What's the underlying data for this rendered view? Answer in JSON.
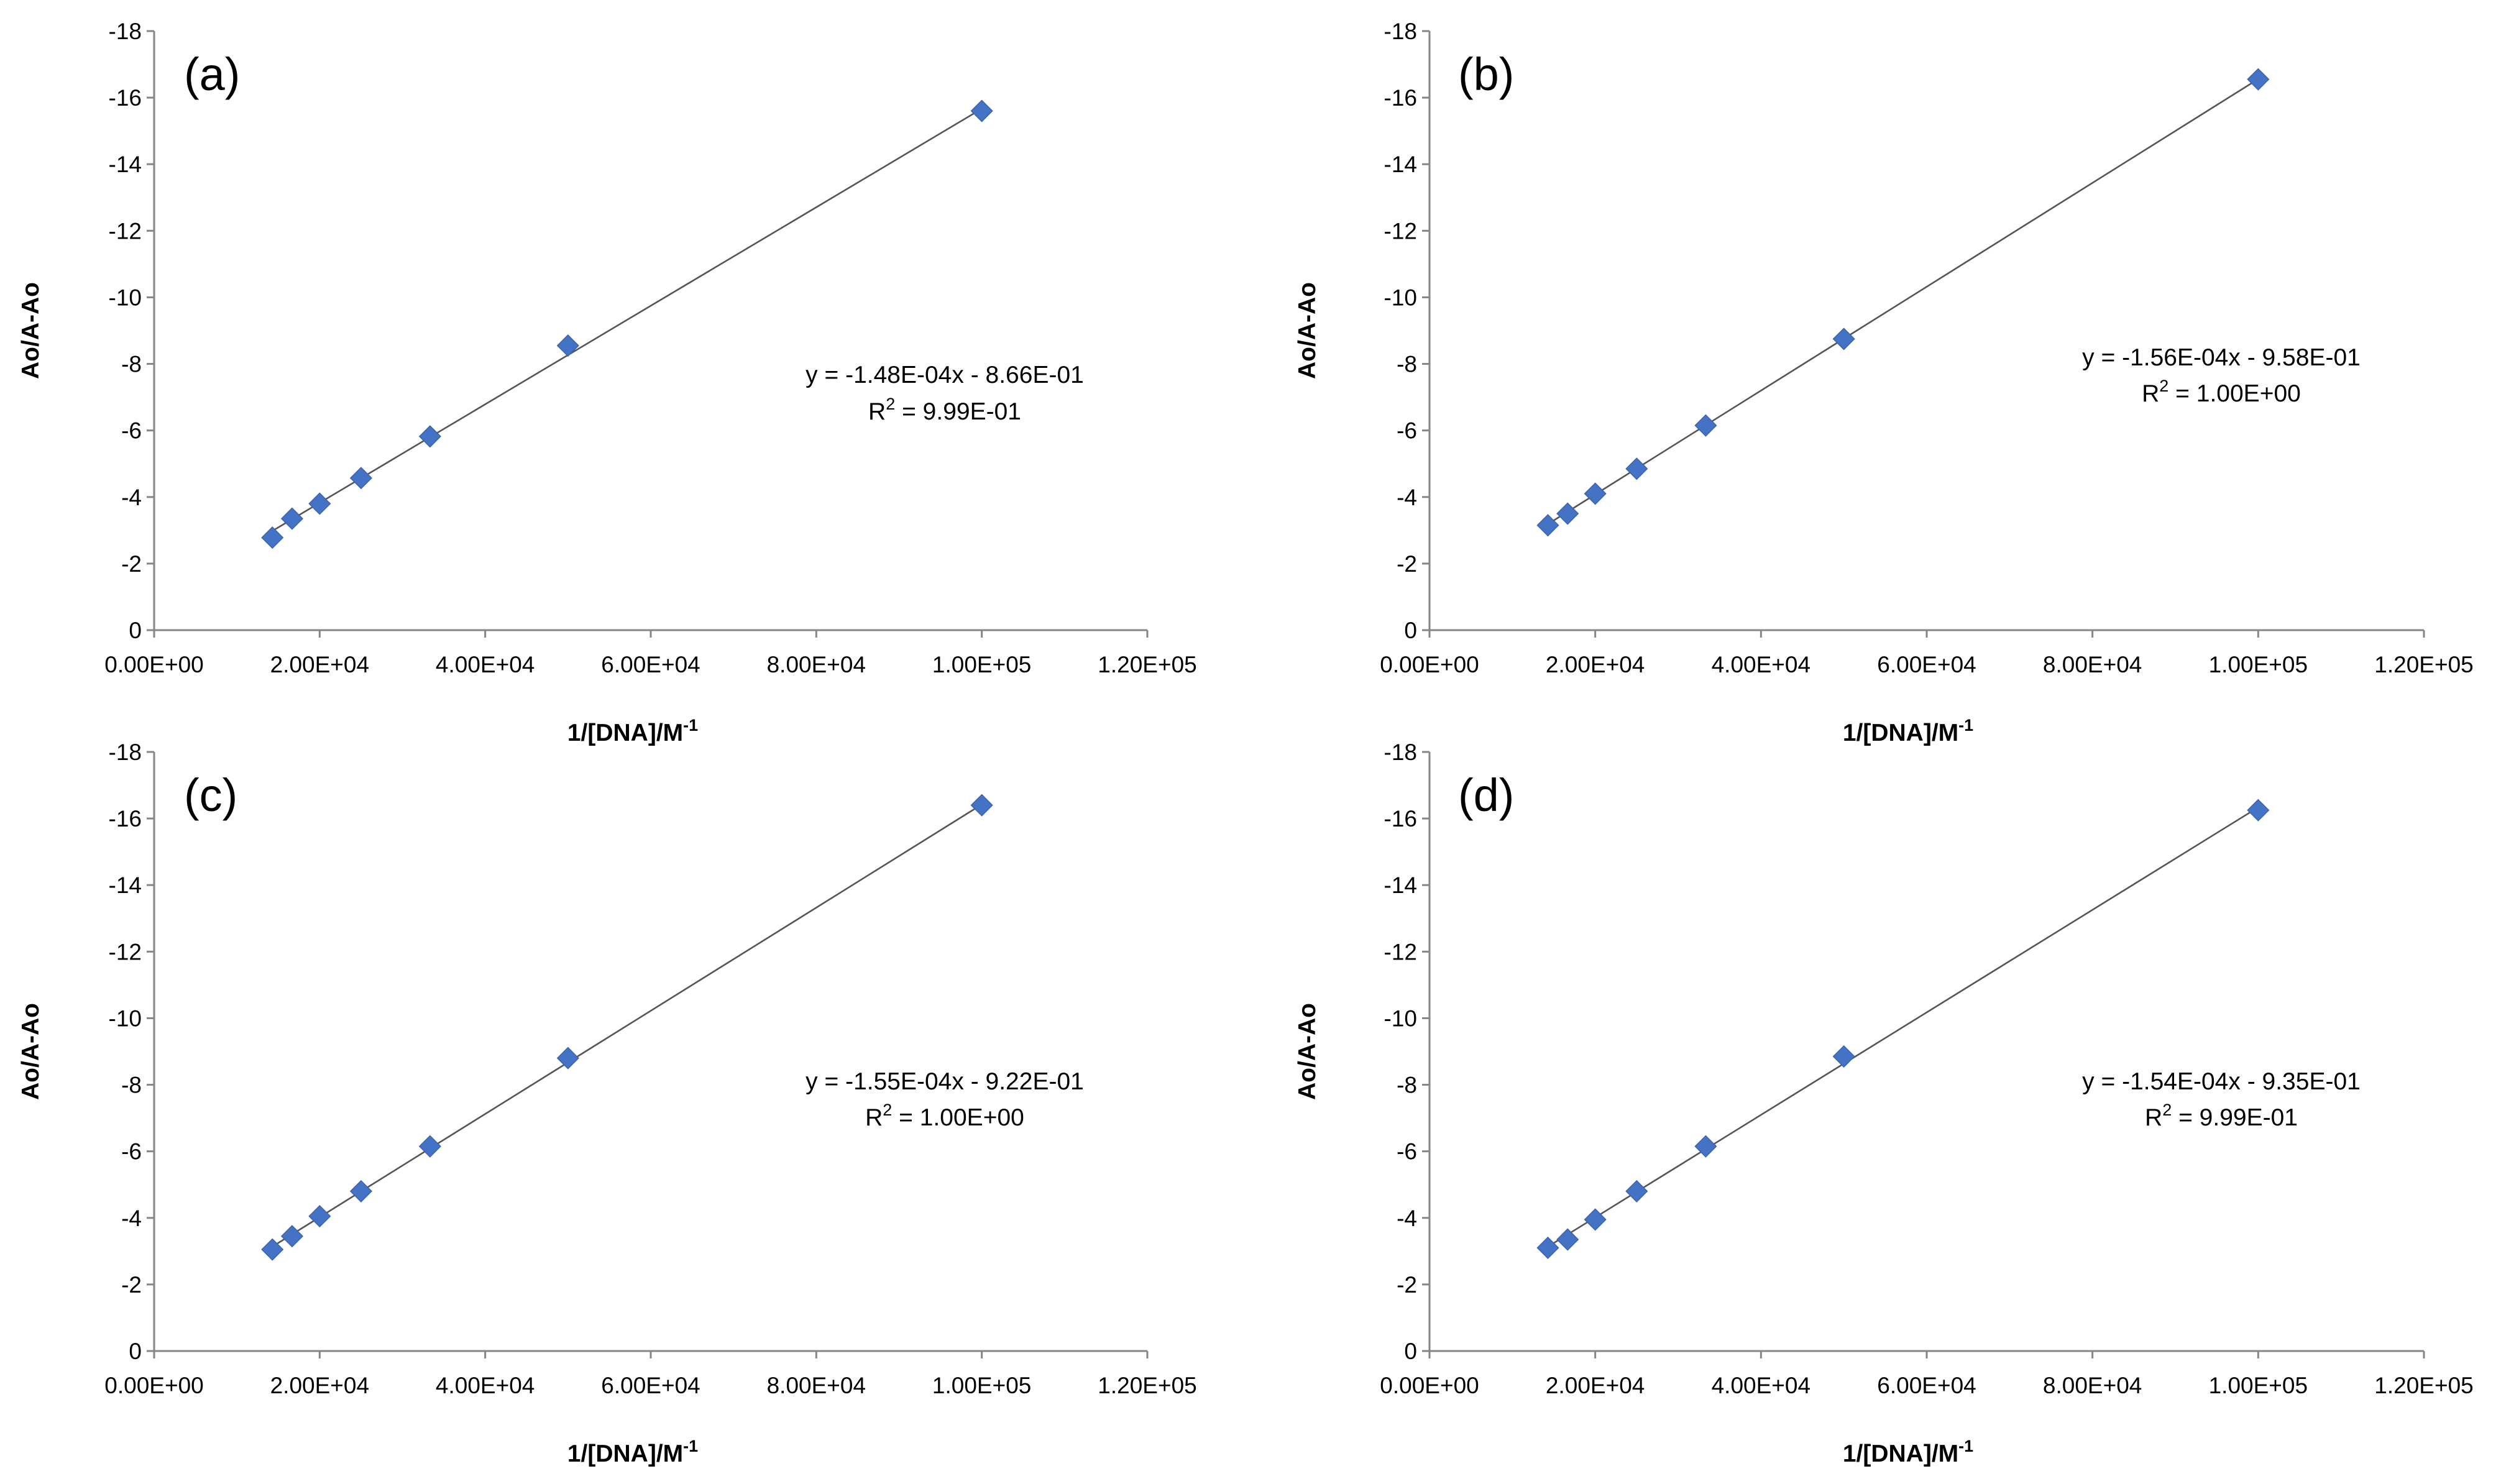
{
  "chart_data": [
    {
      "type": "scatter",
      "panel_label": "(a)",
      "xlabel": "1/[DNA]/M",
      "xlabel_sup": "-1",
      "ylabel": "Ao/A-Ao",
      "x_tick_labels": [
        "0.00E+00",
        "2.00E+04",
        "4.00E+04",
        "6.00E+04",
        "8.00E+04",
        "1.00E+05",
        "1.20E+05"
      ],
      "y_tick_labels": [
        "0",
        "-2",
        "-4",
        "-6",
        "-8",
        "-10",
        "-12",
        "-14",
        "-16",
        "-18"
      ],
      "xlim": [
        0,
        120000
      ],
      "ylim": [
        0,
        -18
      ],
      "x": [
        14286,
        16667,
        20000,
        25000,
        33333,
        50000,
        100000
      ],
      "y": [
        -2.78,
        -3.35,
        -3.8,
        -4.57,
        -5.82,
        -8.55,
        -15.6
      ],
      "marker": "diamond",
      "marker_color": "#4472c4",
      "trendline": {
        "slope": -0.000148,
        "intercept": -0.866
      },
      "equation": "y = -1.48E-04x - 8.66E-01",
      "r2_prefix": "R",
      "r2_sup": "2",
      "r2_value": " = 9.99E-01",
      "grid": false,
      "legend": "none"
    },
    {
      "type": "scatter",
      "panel_label": "(b)",
      "xlabel": "1/[DNA]/M",
      "xlabel_sup": "-1",
      "ylabel": "Ao/A-Ao",
      "x_tick_labels": [
        "0.00E+00",
        "2.00E+04",
        "4.00E+04",
        "6.00E+04",
        "8.00E+04",
        "1.00E+05",
        "1.20E+05"
      ],
      "y_tick_labels": [
        "0",
        "-2",
        "-4",
        "-6",
        "-8",
        "-10",
        "-12",
        "-14",
        "-16",
        "-18"
      ],
      "xlim": [
        0,
        120000
      ],
      "ylim": [
        0,
        -18
      ],
      "x": [
        14286,
        16667,
        20000,
        25000,
        33333,
        50000,
        100000
      ],
      "y": [
        -3.15,
        -3.5,
        -4.1,
        -4.85,
        -6.15,
        -8.75,
        -16.55
      ],
      "marker": "diamond",
      "marker_color": "#4472c4",
      "trendline": {
        "slope": -0.000156,
        "intercept": -0.958
      },
      "equation": "y = -1.56E-04x - 9.58E-01",
      "r2_prefix": "R",
      "r2_sup": "2",
      "r2_value": " = 1.00E+00",
      "grid": false,
      "legend": "none"
    },
    {
      "type": "scatter",
      "panel_label": "(c)",
      "xlabel": "1/[DNA]/M",
      "xlabel_sup": "-1",
      "ylabel": "Ao/A-Ao",
      "x_tick_labels": [
        "0.00E+00",
        "2.00E+04",
        "4.00E+04",
        "6.00E+04",
        "8.00E+04",
        "1.00E+05",
        "1.20E+05"
      ],
      "y_tick_labels": [
        "0",
        "-2",
        "-4",
        "-6",
        "-8",
        "-10",
        "-12",
        "-14",
        "-16",
        "-18"
      ],
      "xlim": [
        0,
        120000
      ],
      "ylim": [
        0,
        -18
      ],
      "x": [
        14286,
        16667,
        20000,
        25000,
        33333,
        50000,
        100000
      ],
      "y": [
        -3.05,
        -3.45,
        -4.05,
        -4.8,
        -6.15,
        -8.8,
        -16.4
      ],
      "marker": "diamond",
      "marker_color": "#4472c4",
      "trendline": {
        "slope": -0.000155,
        "intercept": -0.922
      },
      "equation": "y = -1.55E-04x - 9.22E-01",
      "r2_prefix": "R",
      "r2_sup": "2",
      "r2_value": " = 1.00E+00",
      "grid": false,
      "legend": "none"
    },
    {
      "type": "scatter",
      "panel_label": "(d)",
      "xlabel": "1/[DNA]/M",
      "xlabel_sup": "-1",
      "ylabel": "Ao/A-Ao",
      "x_tick_labels": [
        "0.00E+00",
        "2.00E+04",
        "4.00E+04",
        "6.00E+04",
        "8.00E+04",
        "1.00E+05",
        "1.20E+05"
      ],
      "y_tick_labels": [
        "0",
        "-2",
        "-4",
        "-6",
        "-8",
        "-10",
        "-12",
        "-14",
        "-16",
        "-18"
      ],
      "xlim": [
        0,
        120000
      ],
      "ylim": [
        0,
        -18
      ],
      "x": [
        14286,
        16667,
        20000,
        25000,
        33333,
        50000,
        100000
      ],
      "y": [
        -3.1,
        -3.35,
        -3.95,
        -4.8,
        -6.15,
        -8.85,
        -16.25
      ],
      "marker": "diamond",
      "marker_color": "#4472c4",
      "trendline": {
        "slope": -0.000154,
        "intercept": -0.935
      },
      "equation": "y = -1.54E-04x - 9.35E-01",
      "r2_prefix": "R",
      "r2_sup": "2",
      "r2_value": " = 9.99E-01",
      "grid": false,
      "legend": "none"
    }
  ]
}
